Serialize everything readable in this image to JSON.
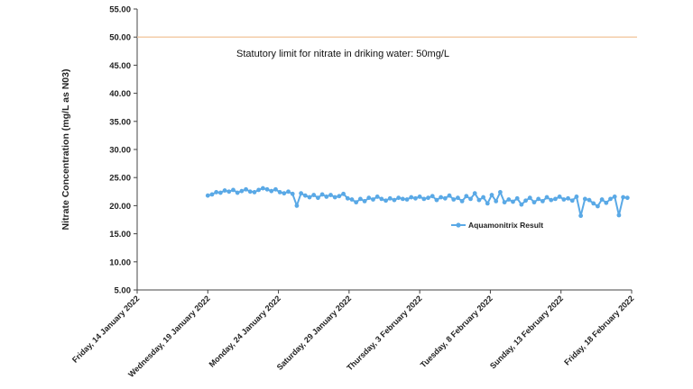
{
  "chart_data": {
    "type": "line",
    "ylabel": "Nitrate Concentration (mg/L as N03)",
    "xlabel": "",
    "ylim": [
      5,
      55
    ],
    "y_ticks": [
      "5.00",
      "10.00",
      "15.00",
      "20.00",
      "25.00",
      "30.00",
      "35.00",
      "40.00",
      "45.00",
      "50.00",
      "55.00"
    ],
    "x_ticks": [
      "Friday, 14 January 2022",
      "Wednesday, 19 January 2022",
      "Monday, 24 January 2022",
      "Saturday, 29 January 2022",
      "Thursday, 3 February 2022",
      "Tuesday, 8 February 2022",
      "Sunday, 13 February 2022",
      "Friday, 18 February 2022"
    ],
    "x_tick_days": [
      0,
      5,
      10,
      15,
      20,
      25,
      30,
      35
    ],
    "reference_line": {
      "value": 50,
      "label": "Statutory limit for nitrate in driking water: 50mg/L",
      "color": "#f2c8a0"
    },
    "series": [
      {
        "name": "Aquamonitrix Result",
        "color": "#5aa9e6",
        "x_days": [
          5.0,
          5.3,
          5.6,
          5.9,
          6.2,
          6.5,
          6.8,
          7.1,
          7.4,
          7.7,
          8.0,
          8.3,
          8.6,
          8.9,
          9.2,
          9.5,
          9.8,
          10.1,
          10.4,
          10.7,
          11.0,
          11.3,
          11.6,
          11.9,
          12.2,
          12.5,
          12.8,
          13.1,
          13.4,
          13.7,
          14.0,
          14.3,
          14.6,
          14.9,
          15.2,
          15.5,
          15.8,
          16.1,
          16.4,
          16.7,
          17.0,
          17.3,
          17.6,
          17.9,
          18.2,
          18.5,
          18.8,
          19.1,
          19.4,
          19.7,
          20.0,
          20.3,
          20.6,
          20.9,
          21.2,
          21.5,
          21.8,
          22.1,
          22.4,
          22.7,
          23.0,
          23.3,
          23.6,
          23.9,
          24.2,
          24.5,
          24.8,
          25.1,
          25.4,
          25.7,
          26.0,
          26.3,
          26.6,
          26.9,
          27.2,
          27.5,
          27.8,
          28.1,
          28.4,
          28.7,
          29.0,
          29.3,
          29.6,
          29.9,
          30.2,
          30.5,
          30.8,
          31.1,
          31.4,
          31.7,
          32.0,
          32.3,
          32.6,
          32.9,
          33.2,
          33.5,
          33.8,
          34.1,
          34.4,
          34.7
        ],
        "values": [
          21.8,
          22.0,
          22.4,
          22.3,
          22.7,
          22.5,
          22.8,
          22.3,
          22.6,
          22.9,
          22.5,
          22.4,
          22.8,
          23.1,
          22.9,
          22.6,
          22.9,
          22.4,
          22.2,
          22.5,
          22.1,
          20.0,
          22.2,
          21.8,
          21.5,
          21.9,
          21.4,
          22.0,
          21.6,
          21.9,
          21.5,
          21.7,
          22.1,
          21.3,
          21.1,
          20.6,
          21.2,
          20.8,
          21.4,
          21.1,
          21.6,
          21.2,
          20.9,
          21.3,
          21.0,
          21.4,
          21.2,
          21.1,
          21.5,
          21.3,
          21.6,
          21.2,
          21.4,
          21.7,
          21.0,
          21.5,
          21.3,
          21.8,
          21.1,
          21.4,
          20.8,
          21.7,
          21.2,
          22.2,
          21.0,
          21.5,
          20.4,
          21.9,
          20.8,
          22.4,
          20.6,
          21.1,
          20.7,
          21.3,
          20.2,
          20.9,
          21.4,
          20.6,
          21.2,
          20.8,
          21.5,
          21.0,
          21.2,
          21.6,
          21.1,
          21.3,
          20.9,
          21.6,
          18.2,
          21.2,
          21.0,
          20.4,
          19.9,
          21.1,
          20.5,
          21.2,
          21.6,
          18.3,
          21.5,
          21.4
        ]
      }
    ],
    "legend_position": "inside-center-right",
    "grid": false
  }
}
